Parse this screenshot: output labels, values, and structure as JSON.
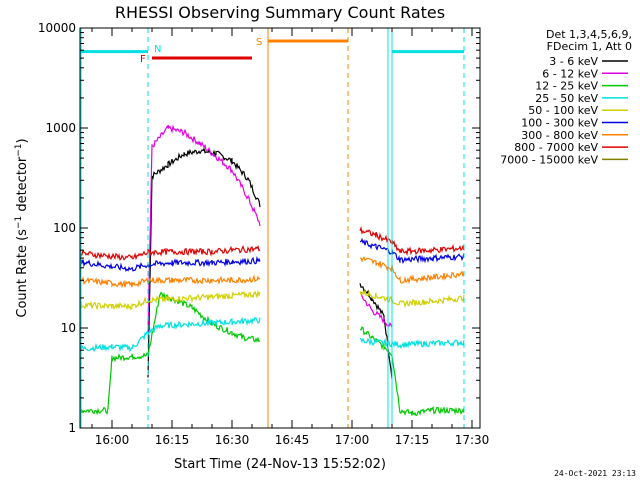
{
  "chart_data": {
    "type": "line",
    "title": "RHESSI Observing Summary Count Rates",
    "xlabel": "Start Time (24-Nov-13 15:52:02)",
    "ylabel": "Count Rate (s⁻¹ detector⁻¹)",
    "y_scale": "log",
    "xlim": [
      "15:52",
      "17:32"
    ],
    "ylim": [
      1,
      10000
    ],
    "x_ticks": [
      "16:00",
      "16:15",
      "16:30",
      "16:45",
      "17:00",
      "17:15",
      "17:30"
    ],
    "y_ticks": [
      "1",
      "10",
      "100",
      "1000",
      "10000"
    ],
    "timestamp": "24-Oct-2021 23:13",
    "legend_header": [
      "Det 1,3,4,5,6,9,",
      "FDecim 1, Att 0"
    ],
    "legend_position": "top-right",
    "series": [
      {
        "name": "3 - 6 keV",
        "color": "#000000",
        "x": [
          "16:09",
          "16:10",
          "16:14",
          "16:18",
          "16:22",
          "16:26",
          "16:30",
          "16:34",
          "16:37",
          "17:02",
          "17:05",
          "17:08",
          "17:10"
        ],
        "y": [
          3.2,
          330,
          430,
          550,
          590,
          560,
          470,
          310,
          170,
          28,
          20,
          13,
          3.3
        ]
      },
      {
        "name": "6 - 12 keV",
        "color": "#e000e0",
        "x": [
          "16:09",
          "16:10",
          "16:14",
          "16:18",
          "16:22",
          "16:26",
          "16:30",
          "16:34",
          "16:37",
          "17:02",
          "17:05",
          "17:08",
          "17:10"
        ],
        "y": [
          9,
          650,
          1000,
          900,
          700,
          520,
          380,
          200,
          110,
          22,
          15,
          12,
          10
        ]
      },
      {
        "name": "12 - 25 keV",
        "color": "#00c800",
        "x": [
          "15:52",
          "15:59",
          "16:00",
          "16:05",
          "16:09",
          "16:12",
          "16:16",
          "16:20",
          "16:25",
          "16:30",
          "16:33",
          "16:37",
          "17:02",
          "17:05",
          "17:08",
          "17:10",
          "17:12",
          "17:15",
          "17:20",
          "17:25",
          "17:28"
        ],
        "y": [
          1.5,
          1.5,
          5,
          5.2,
          5.3,
          22,
          19,
          16,
          11,
          9,
          8,
          7.5,
          10,
          8,
          6.5,
          5.5,
          1.5,
          1.4,
          1.5,
          1.5,
          1.5
        ]
      },
      {
        "name": "25 - 50 keV",
        "color": "#00e0e0",
        "x": [
          "15:52",
          "16:00",
          "16:05",
          "16:09",
          "16:12",
          "16:20",
          "16:30",
          "16:37",
          "17:02",
          "17:06",
          "17:10",
          "17:12",
          "17:20",
          "17:28"
        ],
        "y": [
          6.2,
          6.5,
          6.3,
          9,
          10.5,
          11,
          11.5,
          12,
          7.5,
          7.2,
          7,
          6.8,
          7,
          7.2
        ]
      },
      {
        "name": "50 - 100 keV",
        "color": "#d0d000",
        "x": [
          "15:52",
          "16:00",
          "16:05",
          "16:09",
          "16:15",
          "16:25",
          "16:30",
          "16:37",
          "17:02",
          "17:06",
          "17:10",
          "17:12",
          "17:20",
          "17:28"
        ],
        "y": [
          17,
          16.5,
          16.5,
          19,
          19.5,
          20.5,
          21,
          22,
          23,
          21,
          19,
          17.5,
          18.5,
          20
        ]
      },
      {
        "name": "100 - 300 keV",
        "color": "#0000e0",
        "x": [
          "15:52",
          "16:00",
          "16:05",
          "16:09",
          "16:15",
          "16:25",
          "16:30",
          "16:37",
          "17:02",
          "17:06",
          "17:10",
          "17:12",
          "17:20",
          "17:28"
        ],
        "y": [
          46,
          41,
          39,
          43,
          45,
          45,
          46,
          47,
          73,
          65,
          58,
          48,
          50,
          52
        ]
      },
      {
        "name": "300 - 800 keV",
        "color": "#ff8000",
        "x": [
          "15:52",
          "16:00",
          "16:05",
          "16:09",
          "16:15",
          "16:25",
          "16:30",
          "16:37",
          "17:02",
          "17:06",
          "17:10",
          "17:12",
          "17:20",
          "17:28"
        ],
        "y": [
          30,
          28,
          27,
          30,
          30,
          30,
          30,
          31,
          50,
          45,
          40,
          30,
          32,
          35
        ]
      },
      {
        "name": "800 - 7000 keV",
        "color": "#e00000",
        "x": [
          "15:52",
          "16:00",
          "16:05",
          "16:09",
          "16:15",
          "16:25",
          "16:30",
          "16:37",
          "17:02",
          "17:06",
          "17:10",
          "17:12",
          "17:20",
          "17:28"
        ],
        "y": [
          56,
          52,
          50,
          57,
          58,
          58,
          60,
          62,
          95,
          85,
          72,
          58,
          60,
          63
        ]
      },
      {
        "name": "7000 - 15000 keV",
        "color": "#808000",
        "x": [],
        "y": []
      }
    ],
    "flags": [
      {
        "label": "N",
        "color": "#00e0e0",
        "x_start": "16:09",
        "x_end": "17:09",
        "note": "night"
      },
      {
        "label": "F",
        "color": "#e00000",
        "x_start": "16:10",
        "x_end": "16:35",
        "note": "flare"
      },
      {
        "label": "S",
        "color": "#ff8000",
        "x_start": "16:39",
        "x_end": "16:59",
        "note": "SAA"
      }
    ],
    "night_bands": [
      {
        "x_start": "15:52",
        "x_end": "16:09",
        "level": 5800
      },
      {
        "x_start": "17:10",
        "x_end": "17:28",
        "level": 5800
      }
    ]
  }
}
